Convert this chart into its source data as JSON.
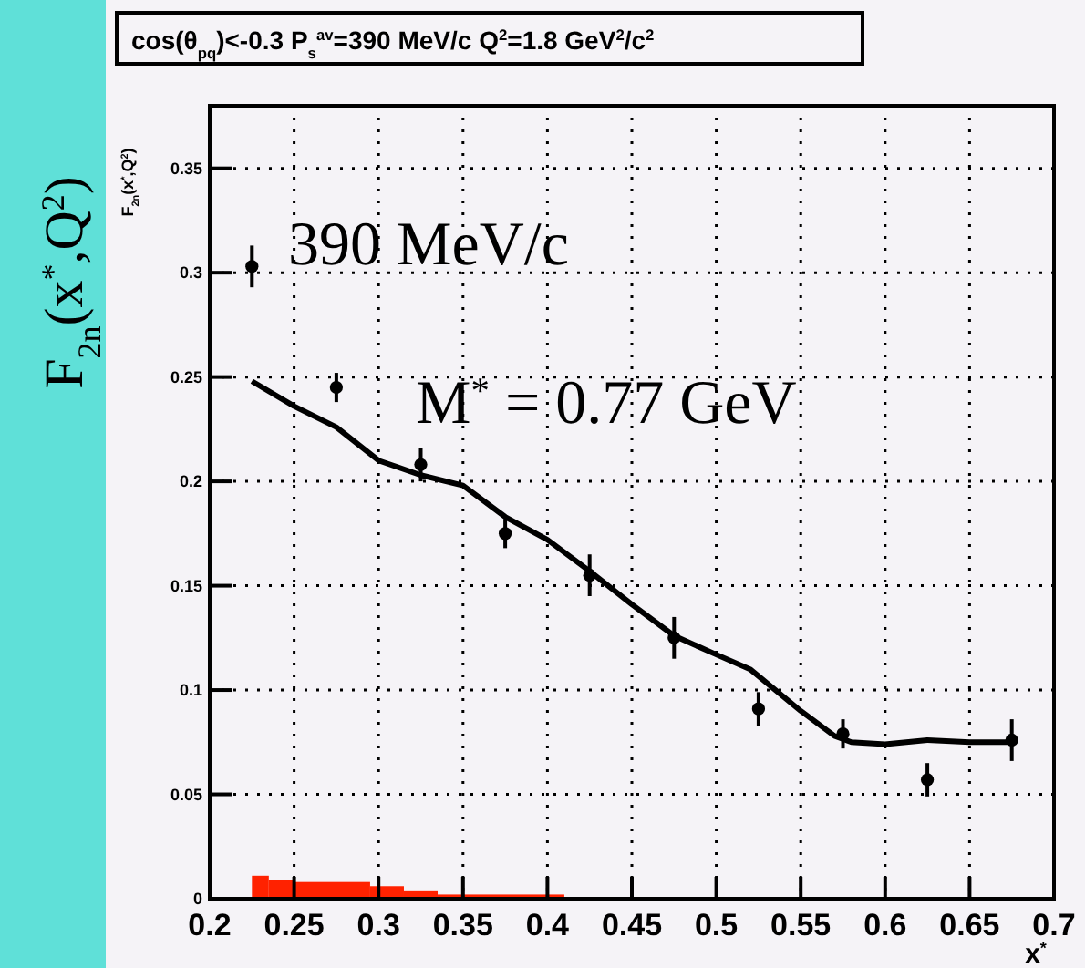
{
  "chart_data": {
    "type": "scatter",
    "title": "cos(θ$_{pq}$)<-0.3 P$_{s}$$^{av}$=390 MeV/c Q$^{2}$=1.8 GeV$^{2}$/c$^{2}$",
    "xlabel": "x$^{*}$",
    "ylabel": "F$_{2n}$(x$^{*}$,Q$^{2}$)",
    "annotations": [
      "F$_{2n}$(x$^{*}$,Q$^{2}$)",
      "390 MeV/c",
      "M$^{*}$ = 0.77 GeV"
    ],
    "xlim": [
      0.2,
      0.7
    ],
    "ylim": [
      0,
      0.38
    ],
    "xticks": [
      0.2,
      0.25,
      0.3,
      0.35,
      0.4,
      0.45,
      0.5,
      0.55,
      0.6,
      0.65,
      0.7
    ],
    "yticks": [
      0,
      0.05,
      0.1,
      0.15,
      0.2,
      0.25,
      0.3,
      0.35
    ],
    "grid": true,
    "series": [
      {
        "type": "histogram",
        "color": "#ff2200",
        "bins": [
          0.225,
          0.235,
          0.25,
          0.295,
          0.315,
          0.335,
          0.41
        ],
        "values": [
          0.011,
          0.009,
          0.008,
          0.006,
          0.004,
          0.002
        ]
      },
      {
        "type": "line",
        "color": "#000000",
        "x": [
          0.225,
          0.25,
          0.275,
          0.3,
          0.325,
          0.35,
          0.375,
          0.4,
          0.425,
          0.45,
          0.475,
          0.5,
          0.52,
          0.55,
          0.57,
          0.58,
          0.6,
          0.625,
          0.65,
          0.675
        ],
        "values": [
          0.248,
          0.236,
          0.226,
          0.21,
          0.203,
          0.198,
          0.183,
          0.172,
          0.157,
          0.141,
          0.126,
          0.117,
          0.11,
          0.09,
          0.078,
          0.075,
          0.074,
          0.076,
          0.075,
          0.075
        ]
      },
      {
        "color": "#000000",
        "marker": "circle",
        "x": [
          0.225,
          0.275,
          0.325,
          0.375,
          0.425,
          0.475,
          0.525,
          0.575,
          0.625,
          0.675
        ],
        "values": [
          0.303,
          0.245,
          0.208,
          0.175,
          0.155,
          0.125,
          0.091,
          0.079,
          0.057,
          0.076
        ],
        "errors": [
          0.01,
          0.007,
          0.008,
          0.007,
          0.01,
          0.01,
          0.008,
          0.007,
          0.008,
          0.01
        ]
      }
    ]
  }
}
